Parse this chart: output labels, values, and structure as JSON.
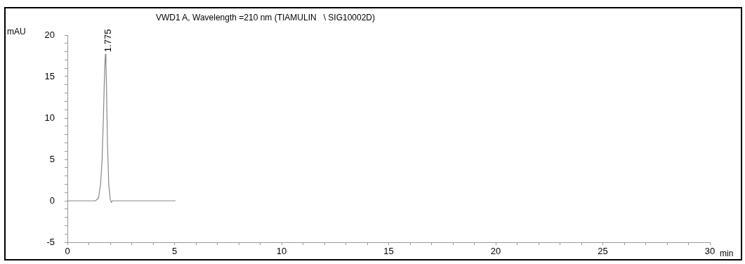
{
  "chart_data": {
    "type": "line",
    "title": "VWD1 A, Wavelength =210 nm (TIAMULIN   \\ SIG10002D)",
    "xlabel": "min",
    "ylabel": "mAU",
    "x": [
      0,
      1.3,
      1.45,
      1.55,
      1.62,
      1.68,
      1.72,
      1.75,
      1.775,
      1.8,
      1.83,
      1.87,
      1.93,
      2.0,
      2.05,
      2.1,
      5.05
    ],
    "series": [
      {
        "color": "#888888",
        "values": [
          0,
          0,
          0.3,
          2,
          5,
          10,
          14,
          16.5,
          17.7,
          16.5,
          13,
          7,
          2,
          0.2,
          -0.2,
          0,
          0
        ]
      }
    ],
    "xlim": [
      0,
      30
    ],
    "xticks": [
      0,
      {
        "value": 1,
        "label": null
      },
      {
        "value": 2,
        "label": null
      },
      {
        "value": 3,
        "label": null
      },
      {
        "value": 4,
        "label": null
      },
      5,
      {
        "value": 6,
        "label": null
      },
      {
        "value": 7,
        "label": null
      },
      {
        "value": 8,
        "label": null
      },
      {
        "value": 9,
        "label": null
      },
      10,
      {
        "value": 11,
        "label": null
      },
      {
        "value": 12,
        "label": null
      },
      {
        "value": 13,
        "label": null
      },
      {
        "value": 14,
        "label": null
      },
      15,
      {
        "value": 16,
        "label": null
      },
      {
        "value": 17,
        "label": null
      },
      {
        "value": 18,
        "label": null
      },
      {
        "value": 19,
        "label": null
      },
      20,
      {
        "value": 21,
        "label": null
      },
      {
        "value": 22,
        "label": null
      },
      {
        "value": 23,
        "label": null
      },
      {
        "value": 24,
        "label": null
      },
      25,
      {
        "value": 26,
        "label": null
      },
      {
        "value": 27,
        "label": null
      },
      {
        "value": 28,
        "label": null
      },
      {
        "value": 29,
        "label": null
      },
      30
    ],
    "ylim": [
      -5,
      20
    ],
    "yticks": [
      -5,
      {
        "value": -4,
        "label": null
      },
      {
        "value": -3,
        "label": null
      },
      {
        "value": -2,
        "label": null
      },
      {
        "value": -1,
        "label": null
      },
      0,
      {
        "value": 1,
        "label": null
      },
      {
        "value": 2,
        "label": null
      },
      {
        "value": 3,
        "label": null
      },
      {
        "value": 4,
        "label": null
      },
      5,
      {
        "value": 6,
        "label": null
      },
      {
        "value": 7,
        "label": null
      },
      {
        "value": 8,
        "label": null
      },
      {
        "value": 9,
        "label": null
      },
      10,
      {
        "value": 11,
        "label": null
      },
      {
        "value": 12,
        "label": null
      },
      {
        "value": 13,
        "label": null
      },
      {
        "value": 14,
        "label": null
      },
      15,
      {
        "value": 16,
        "label": null
      },
      {
        "value": 17,
        "label": null
      },
      {
        "value": 18,
        "label": null
      },
      {
        "value": 19,
        "label": null
      },
      20
    ],
    "annotations": [
      {
        "text": "1.775",
        "x": 1.775,
        "y": 17.7
      }
    ],
    "grid": false,
    "legend": false,
    "marker": "none",
    "line_style": "solid"
  }
}
